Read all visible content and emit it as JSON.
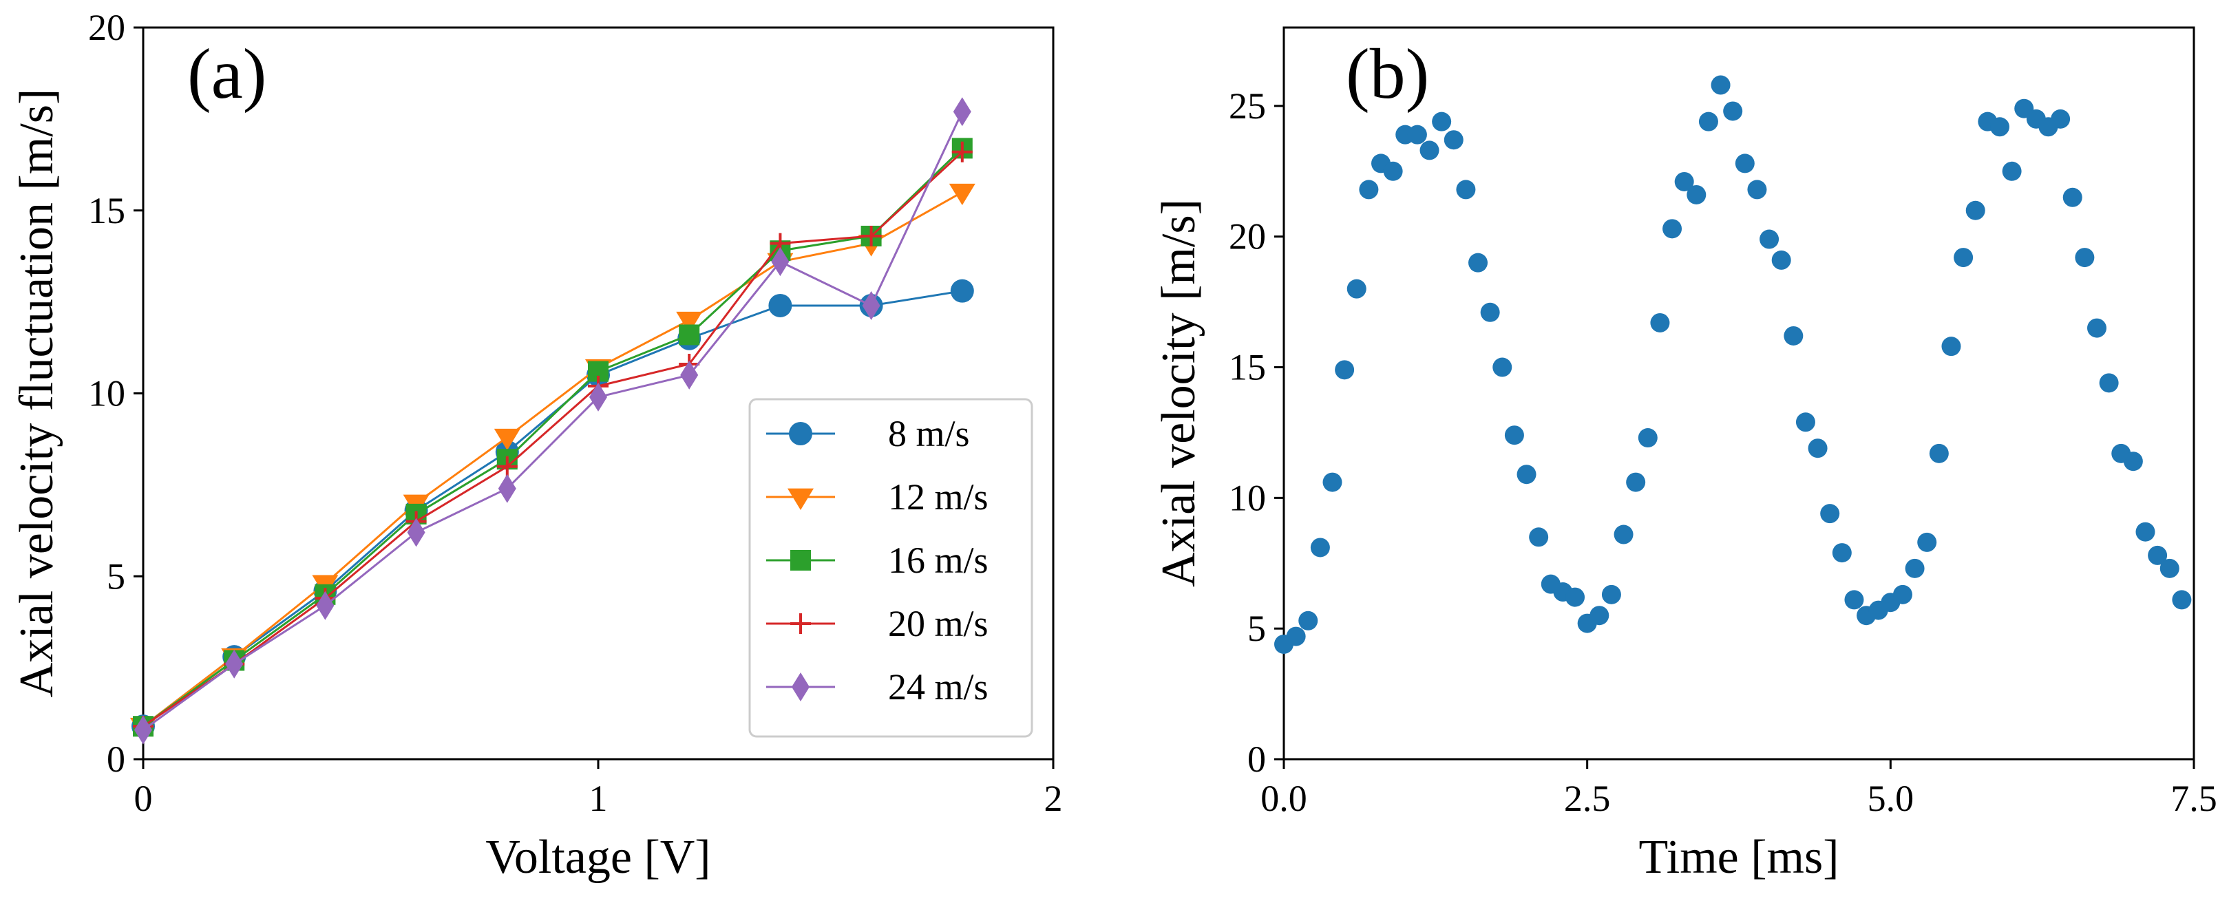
{
  "chart_data": [
    {
      "type": "line",
      "panel_label": "(a)",
      "title": "",
      "xlabel": "Voltage [V]",
      "ylabel": "Axial velocity fluctuation [m/s]",
      "xlim": [
        0,
        2
      ],
      "ylim": [
        0,
        20
      ],
      "xticks": [
        0,
        1,
        2
      ],
      "xtick_labels": [
        "0",
        "1",
        "2"
      ],
      "yticks": [
        0,
        5,
        10,
        15,
        20
      ],
      "ytick_labels": [
        "0",
        "5",
        "10",
        "15",
        "20"
      ],
      "grid": false,
      "legend_position": "lower-right",
      "x": [
        0,
        0.2,
        0.4,
        0.6,
        0.8,
        1.0,
        1.2,
        1.4,
        1.6,
        1.8
      ],
      "series": [
        {
          "name": "8 m/s",
          "color": "#1f77b4",
          "marker": "circle",
          "values": [
            0.9,
            2.8,
            4.6,
            6.8,
            8.4,
            10.5,
            11.5,
            12.4,
            12.4,
            12.8
          ]
        },
        {
          "name": "12 m/s",
          "color": "#ff7f0e",
          "marker": "triangle-down",
          "values": [
            0.9,
            2.8,
            4.8,
            7.0,
            8.8,
            10.7,
            12.0,
            13.6,
            14.1,
            15.5
          ]
        },
        {
          "name": "16 m/s",
          "color": "#2ca02c",
          "marker": "square",
          "values": [
            0.9,
            2.7,
            4.5,
            6.7,
            8.2,
            10.6,
            11.6,
            13.9,
            14.3,
            16.7
          ]
        },
        {
          "name": "20 m/s",
          "color": "#d62728",
          "marker": "plus",
          "values": [
            0.9,
            2.6,
            4.4,
            6.5,
            8.0,
            10.2,
            10.8,
            14.1,
            14.3,
            16.6
          ]
        },
        {
          "name": "24 m/s",
          "color": "#9467bd",
          "marker": "diamond",
          "values": [
            0.8,
            2.6,
            4.2,
            6.2,
            7.4,
            9.9,
            10.5,
            13.6,
            12.4,
            17.7
          ]
        }
      ]
    },
    {
      "type": "scatter",
      "panel_label": "(b)",
      "title": "",
      "xlabel": "Time [ms]",
      "ylabel": "Axial velocity [m/s]",
      "xlim": [
        0,
        7.5
      ],
      "ylim": [
        0,
        28
      ],
      "xticks": [
        0,
        2.5,
        5.0,
        7.5
      ],
      "xtick_labels": [
        "0.0",
        "2.5",
        "5.0",
        "7.5"
      ],
      "yticks": [
        0,
        5,
        10,
        15,
        20,
        25
      ],
      "ytick_labels": [
        "0",
        "5",
        "10",
        "15",
        "20",
        "25"
      ],
      "grid": false,
      "series": [
        {
          "name": "axial velocity",
          "color": "#1f77b4",
          "marker": "circle",
          "x": [
            0.0,
            0.1,
            0.2,
            0.3,
            0.4,
            0.5,
            0.6,
            0.7,
            0.8,
            0.9,
            1.0,
            1.1,
            1.2,
            1.3,
            1.4,
            1.5,
            1.6,
            1.7,
            1.8,
            1.9,
            2.0,
            2.1,
            2.2,
            2.3,
            2.4,
            2.5,
            2.6,
            2.7,
            2.8,
            2.9,
            3.0,
            3.1,
            3.2,
            3.3,
            3.4,
            3.5,
            3.6,
            3.7,
            3.8,
            3.9,
            4.0,
            4.1,
            4.2,
            4.3,
            4.4,
            4.5,
            4.6,
            4.7,
            4.8,
            4.9,
            5.0,
            5.1,
            5.2,
            5.3,
            5.4,
            5.5,
            5.6,
            5.7,
            5.8,
            5.9,
            6.0,
            6.1,
            6.2,
            6.3,
            6.4,
            6.5,
            6.6,
            6.7,
            6.8,
            6.9,
            7.0,
            7.1,
            7.2,
            7.3,
            7.4
          ],
          "y": [
            4.4,
            4.7,
            5.3,
            8.1,
            10.6,
            14.9,
            18.0,
            21.8,
            22.8,
            22.5,
            23.9,
            23.9,
            23.3,
            24.4,
            23.7,
            21.8,
            19.0,
            17.1,
            15.0,
            12.4,
            10.9,
            8.5,
            6.7,
            6.4,
            6.2,
            5.2,
            5.5,
            6.3,
            8.6,
            10.6,
            12.3,
            16.7,
            20.3,
            22.1,
            21.6,
            24.4,
            25.8,
            24.8,
            22.8,
            21.8,
            19.9,
            19.1,
            16.2,
            12.9,
            11.9,
            9.4,
            7.9,
            6.1,
            5.5,
            5.7,
            6.0,
            6.3,
            7.3,
            8.3,
            11.7,
            15.8,
            19.2,
            21.0,
            24.4,
            24.2,
            22.5,
            24.9,
            24.5,
            24.2,
            24.5,
            21.5,
            19.2,
            16.5,
            14.4,
            11.7,
            11.4,
            8.7,
            7.8,
            7.3,
            6.1
          ]
        }
      ]
    }
  ]
}
